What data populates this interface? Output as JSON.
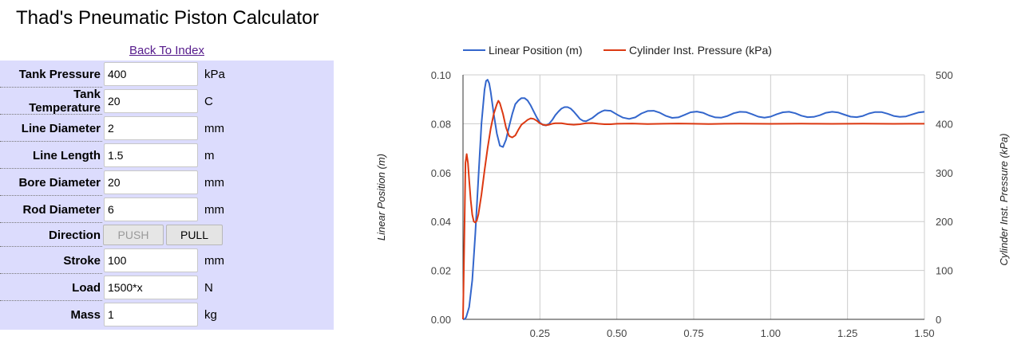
{
  "page": {
    "title": "Thad's Pneumatic Piston Calculator",
    "back_link": "Back To Index"
  },
  "form": {
    "fields": [
      {
        "label": "Tank Pressure",
        "value": "400",
        "unit": "kPa"
      },
      {
        "label": "Tank Temperature",
        "value": "20",
        "unit": "C"
      },
      {
        "label": "Line Diameter",
        "value": "2",
        "unit": "mm"
      },
      {
        "label": "Line Length",
        "value": "1.5",
        "unit": "m"
      },
      {
        "label": "Bore Diameter",
        "value": "20",
        "unit": "mm"
      },
      {
        "label": "Rod Diameter",
        "value": "6",
        "unit": "mm"
      },
      {
        "label": "Direction",
        "type": "buttons",
        "buttons": [
          "PUSH",
          "PULL"
        ],
        "selected": "PULL"
      },
      {
        "label": "Stroke",
        "value": "100",
        "unit": "mm"
      },
      {
        "label": "Load",
        "value": "1500*x",
        "unit": "N"
      },
      {
        "label": "Mass",
        "value": "1",
        "unit": "kg"
      }
    ]
  },
  "chart_data": {
    "type": "line",
    "title": "",
    "xlabel": "",
    "legend_position": "top",
    "grid": true,
    "xlim": [
      0,
      1.5
    ],
    "x_ticks": [
      "0.25",
      "0.50",
      "0.75",
      "1.00",
      "1.25",
      "1.50"
    ],
    "y_left": {
      "label": "Linear Position (m)",
      "range": [
        0,
        0.1
      ],
      "ticks": [
        "0.00",
        "0.02",
        "0.04",
        "0.06",
        "0.08",
        "0.10"
      ]
    },
    "y_right": {
      "label": "Cylinder Inst. Pressure (kPa)",
      "range": [
        0,
        500
      ],
      "ticks": [
        "0",
        "100",
        "200",
        "300",
        "400",
        "500"
      ]
    },
    "series": [
      {
        "name": "Linear Position (m)",
        "axis": "left",
        "color": "#3366cc",
        "points": [
          [
            0,
            0
          ],
          [
            0.005,
            0.0001
          ],
          [
            0.01,
            0.0008
          ],
          [
            0.02,
            0.005
          ],
          [
            0.03,
            0.016
          ],
          [
            0.04,
            0.035
          ],
          [
            0.05,
            0.058
          ],
          [
            0.06,
            0.08
          ],
          [
            0.07,
            0.094
          ],
          [
            0.075,
            0.0975
          ],
          [
            0.08,
            0.098
          ],
          [
            0.085,
            0.0965
          ],
          [
            0.09,
            0.093
          ],
          [
            0.1,
            0.084
          ],
          [
            0.11,
            0.076
          ],
          [
            0.12,
            0.071
          ],
          [
            0.13,
            0.0705
          ],
          [
            0.14,
            0.0735
          ],
          [
            0.15,
            0.079
          ],
          [
            0.16,
            0.084
          ],
          [
            0.17,
            0.088
          ],
          [
            0.18,
            0.0895
          ],
          [
            0.19,
            0.0905
          ],
          [
            0.2,
            0.0905
          ],
          [
            0.21,
            0.0895
          ],
          [
            0.22,
            0.0875
          ],
          [
            0.23,
            0.085
          ],
          [
            0.24,
            0.0825
          ],
          [
            0.25,
            0.0805
          ],
          [
            0.26,
            0.0795
          ],
          [
            0.27,
            0.0793
          ],
          [
            0.28,
            0.08
          ],
          [
            0.29,
            0.0815
          ],
          [
            0.3,
            0.0835
          ],
          [
            0.31,
            0.085
          ],
          [
            0.32,
            0.0862
          ],
          [
            0.33,
            0.0868
          ],
          [
            0.34,
            0.0868
          ],
          [
            0.35,
            0.0862
          ],
          [
            0.36,
            0.085
          ],
          [
            0.37,
            0.0835
          ],
          [
            0.38,
            0.082
          ],
          [
            0.39,
            0.0812
          ],
          [
            0.4,
            0.081
          ],
          [
            0.42,
            0.0823
          ],
          [
            0.44,
            0.0843
          ],
          [
            0.45,
            0.085
          ],
          [
            0.46,
            0.0855
          ],
          [
            0.48,
            0.0853
          ],
          [
            0.5,
            0.0838
          ],
          [
            0.52,
            0.0825
          ],
          [
            0.54,
            0.082
          ],
          [
            0.56,
            0.0826
          ],
          [
            0.58,
            0.0842
          ],
          [
            0.6,
            0.0852
          ],
          [
            0.62,
            0.0853
          ],
          [
            0.64,
            0.0845
          ],
          [
            0.66,
            0.0832
          ],
          [
            0.68,
            0.0824
          ],
          [
            0.7,
            0.0826
          ],
          [
            0.72,
            0.0836
          ],
          [
            0.74,
            0.0847
          ],
          [
            0.76,
            0.085
          ],
          [
            0.78,
            0.0845
          ],
          [
            0.8,
            0.0834
          ],
          [
            0.82,
            0.0826
          ],
          [
            0.84,
            0.0825
          ],
          [
            0.86,
            0.0832
          ],
          [
            0.88,
            0.0843
          ],
          [
            0.9,
            0.0849
          ],
          [
            0.92,
            0.0848
          ],
          [
            0.94,
            0.0839
          ],
          [
            0.96,
            0.0829
          ],
          [
            0.98,
            0.0825
          ],
          [
            1.0,
            0.0829
          ],
          [
            1.02,
            0.0839
          ],
          [
            1.04,
            0.0847
          ],
          [
            1.06,
            0.0849
          ],
          [
            1.08,
            0.0843
          ],
          [
            1.1,
            0.0833
          ],
          [
            1.12,
            0.0827
          ],
          [
            1.14,
            0.0828
          ],
          [
            1.16,
            0.0835
          ],
          [
            1.18,
            0.0845
          ],
          [
            1.2,
            0.0849
          ],
          [
            1.22,
            0.0846
          ],
          [
            1.24,
            0.0837
          ],
          [
            1.26,
            0.0829
          ],
          [
            1.28,
            0.0827
          ],
          [
            1.3,
            0.0832
          ],
          [
            1.32,
            0.0842
          ],
          [
            1.34,
            0.0848
          ],
          [
            1.36,
            0.0848
          ],
          [
            1.38,
            0.0841
          ],
          [
            1.4,
            0.0832
          ],
          [
            1.42,
            0.0828
          ],
          [
            1.44,
            0.083
          ],
          [
            1.46,
            0.0838
          ],
          [
            1.48,
            0.0846
          ],
          [
            1.5,
            0.0849
          ]
        ]
      },
      {
        "name": "Cylinder Inst. Pressure (kPa)",
        "axis": "right",
        "color": "#dc3912",
        "points": [
          [
            0,
            0
          ],
          [
            0.004,
            150
          ],
          [
            0.008,
            320
          ],
          [
            0.012,
            338
          ],
          [
            0.016,
            320
          ],
          [
            0.02,
            285
          ],
          [
            0.025,
            245
          ],
          [
            0.03,
            214
          ],
          [
            0.035,
            200
          ],
          [
            0.04,
            198
          ],
          [
            0.045,
            202
          ],
          [
            0.05,
            215
          ],
          [
            0.06,
            255
          ],
          [
            0.07,
            305
          ],
          [
            0.08,
            350
          ],
          [
            0.09,
            390
          ],
          [
            0.1,
            420
          ],
          [
            0.11,
            440
          ],
          [
            0.115,
            447
          ],
          [
            0.12,
            442
          ],
          [
            0.13,
            420
          ],
          [
            0.14,
            392
          ],
          [
            0.15,
            375
          ],
          [
            0.16,
            372
          ],
          [
            0.17,
            376
          ],
          [
            0.18,
            388
          ],
          [
            0.19,
            398
          ],
          [
            0.2,
            403
          ],
          [
            0.21,
            408
          ],
          [
            0.22,
            411
          ],
          [
            0.23,
            410
          ],
          [
            0.24,
            406
          ],
          [
            0.25,
            401
          ],
          [
            0.26,
            398
          ],
          [
            0.27,
            397
          ],
          [
            0.28,
            398
          ],
          [
            0.29,
            400
          ],
          [
            0.3,
            401
          ],
          [
            0.32,
            401
          ],
          [
            0.34,
            399
          ],
          [
            0.36,
            398
          ],
          [
            0.38,
            399
          ],
          [
            0.4,
            401
          ],
          [
            0.42,
            401.5
          ],
          [
            0.44,
            400
          ],
          [
            0.46,
            399
          ],
          [
            0.48,
            399
          ],
          [
            0.5,
            400
          ],
          [
            0.55,
            400.5
          ],
          [
            0.6,
            399.5
          ],
          [
            0.65,
            400
          ],
          [
            0.7,
            400.5
          ],
          [
            0.75,
            400
          ],
          [
            0.8,
            399.5
          ],
          [
            0.85,
            400
          ],
          [
            0.9,
            400.3
          ],
          [
            0.95,
            400
          ],
          [
            1.0,
            399.8
          ],
          [
            1.05,
            400
          ],
          [
            1.1,
            400.2
          ],
          [
            1.15,
            400
          ],
          [
            1.2,
            399.8
          ],
          [
            1.25,
            400
          ],
          [
            1.3,
            400.2
          ],
          [
            1.35,
            400
          ],
          [
            1.4,
            399.8
          ],
          [
            1.45,
            400
          ],
          [
            1.5,
            400
          ]
        ]
      }
    ]
  }
}
